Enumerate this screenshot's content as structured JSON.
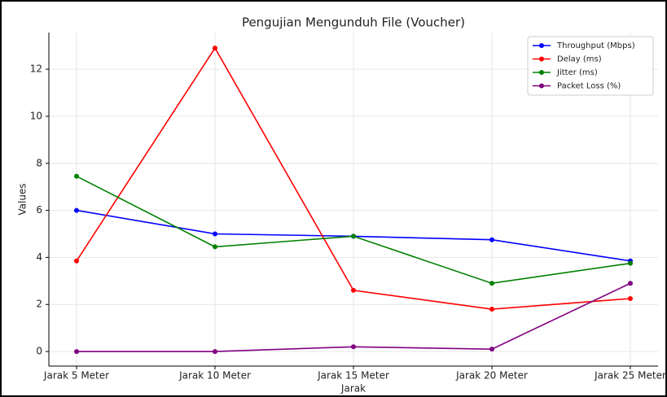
{
  "chart_data": {
    "type": "line",
    "title": "Pengujian Mengunduh File (Voucher)",
    "x_label": "Jarak",
    "y_label": "Values",
    "categories": [
      "Jarak 5 Meter",
      "Jarak 10 Meter",
      "Jarak 15 Meter",
      "Jarak 20 Meter",
      "Jarak 25 Meter"
    ],
    "series": [
      {
        "name": "Throughput (Mbps)",
        "color": "#0000ff",
        "values": [
          6.0,
          5.0,
          4.9,
          4.75,
          3.85
        ]
      },
      {
        "name": "Delay (ms)",
        "color": "#ff0000",
        "values": [
          3.85,
          12.9,
          2.6,
          1.8,
          2.25
        ]
      },
      {
        "name": "Jitter (ms)",
        "color": "#008000",
        "values": [
          7.45,
          4.45,
          4.9,
          2.9,
          3.75
        ]
      },
      {
        "name": "Packet Loss (%)",
        "color": "#800080",
        "values": [
          0,
          0,
          0.2,
          0.1,
          2.9
        ]
      }
    ],
    "ylim": [
      -0.62,
      13.56
    ],
    "yticks": [
      0,
      2,
      4,
      6,
      8,
      10,
      12
    ],
    "grid": true,
    "legend": "upper right"
  }
}
